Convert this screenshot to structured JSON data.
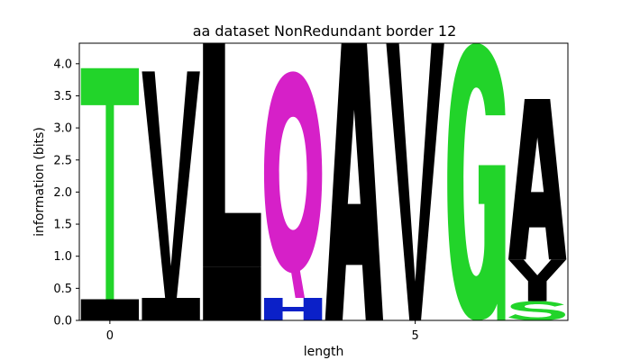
{
  "chart_data": {
    "type": "sequence-logo",
    "title": "aa dataset NonRedundant border 12",
    "xlabel": "length",
    "ylabel": "information (bits)",
    "xlim": [
      -0.5,
      7.5
    ],
    "ylim": [
      0.0,
      4.32
    ],
    "x_ticks": [
      0,
      5
    ],
    "y_ticks": [
      0.0,
      0.5,
      1.0,
      1.5,
      2.0,
      2.5,
      3.0,
      3.5,
      4.0
    ],
    "grid": false,
    "colors": {
      "T": "#22d42a",
      "V": "#000000",
      "L": "#000000",
      "Q": "#d620c8",
      "H": "#0b20c8",
      "A": "#000000",
      "G": "#22d42a",
      "S": "#22d42a"
    },
    "positions": [
      {
        "x": 0,
        "letters": [
          {
            "letter": "I",
            "bits": 0.33
          },
          {
            "letter": "T",
            "bits": 3.6
          }
        ]
      },
      {
        "x": 1,
        "letters": [
          {
            "letter": "I",
            "bits": 0.35
          },
          {
            "letter": "V",
            "bits": 3.53
          }
        ]
      },
      {
        "x": 2,
        "letters": [
          {
            "letter": "M",
            "bits": 0.84
          },
          {
            "letter": "L",
            "bits": 3.48
          }
        ]
      },
      {
        "x": 3,
        "letters": [
          {
            "letter": "H",
            "bits": 0.35
          },
          {
            "letter": "Q",
            "bits": 3.53
          }
        ]
      },
      {
        "x": 4,
        "letters": [
          {
            "letter": "A",
            "bits": 4.32
          }
        ]
      },
      {
        "x": 5,
        "letters": [
          {
            "letter": "V",
            "bits": 4.32
          }
        ]
      },
      {
        "x": 6,
        "letters": [
          {
            "letter": "G",
            "bits": 4.32
          }
        ]
      },
      {
        "x": 7,
        "letters": [
          {
            "letter": "S",
            "bits": 0.3
          },
          {
            "letter": "Y",
            "bits": 0.65
          },
          {
            "letter": "A",
            "bits": 2.5
          }
        ]
      }
    ]
  }
}
